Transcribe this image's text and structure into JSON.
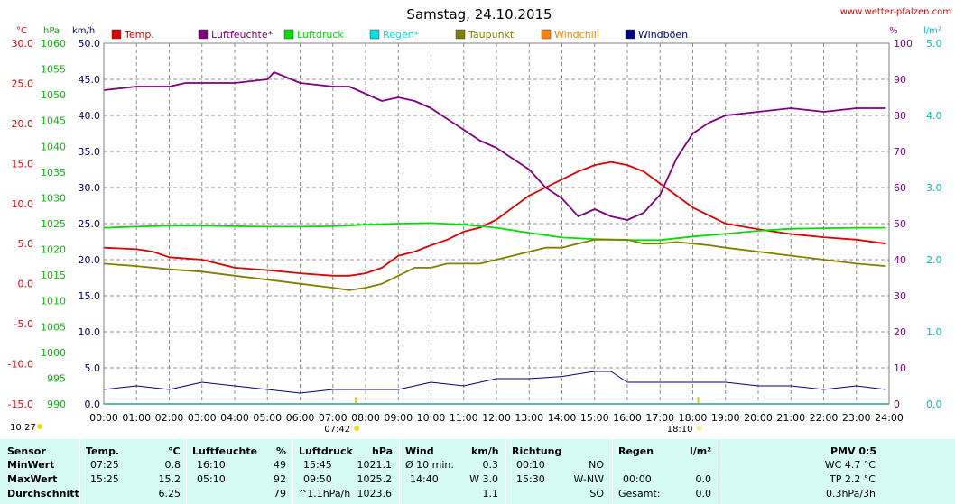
{
  "header": {
    "title": "Samstag, 24.10.2015",
    "website": "www.wetter-pfalzen.com"
  },
  "axes": {
    "temp_unit": "°C",
    "pressure_unit": "hPa",
    "wind_unit": "km/h",
    "humidity_unit": "%",
    "rain_unit": "l/m²"
  },
  "legend": [
    {
      "label": "Temp.",
      "color": "#e00000"
    },
    {
      "label": "Luftfeuchte*",
      "color": "#800080"
    },
    {
      "label": "Luftdruck",
      "color": "#00e000"
    },
    {
      "label": "Regen*",
      "color": "#00e0e0"
    },
    {
      "label": "Taupunkt",
      "color": "#808000"
    },
    {
      "label": "Windchill",
      "color": "#ff8000"
    },
    {
      "label": "Windböen",
      "color": "#000080"
    }
  ],
  "markers": {
    "left_time": "10:27",
    "sunrise": "07:42",
    "sunset": "18:10"
  },
  "chart_data": {
    "type": "line",
    "title": "Samstag, 24.10.2015",
    "x_ticks": [
      "00:00",
      "01:00",
      "02:00",
      "03:00",
      "04:00",
      "05:00",
      "06:00",
      "07:00",
      "08:00",
      "09:00",
      "10:00",
      "11:00",
      "12:00",
      "13:00",
      "14:00",
      "15:00",
      "16:00",
      "17:00",
      "18:00",
      "19:00",
      "20:00",
      "21:00",
      "22:00",
      "23:00",
      "24:00"
    ],
    "x_range_hours": [
      0,
      24
    ],
    "grid": true,
    "legend_position": "top",
    "axes": {
      "temperature": {
        "unit": "°C",
        "range": [
          -15,
          30
        ],
        "ticks": [
          "30.0",
          "25.0",
          "20.0",
          "15.0",
          "10.0",
          "5.0",
          "0.0",
          "-5.0",
          "-10.0",
          "-15.0"
        ],
        "color": "#e00000"
      },
      "pressure": {
        "unit": "hPa",
        "range": [
          990,
          1060
        ],
        "ticks": [
          "1060",
          "1055",
          "1050",
          "1045",
          "1040",
          "1035",
          "1030",
          "1025",
          "1020",
          "1015",
          "1010",
          "1005",
          "1000",
          "995",
          "990"
        ],
        "color": "#00c000"
      },
      "wind": {
        "unit": "km/h",
        "range": [
          0,
          50
        ],
        "ticks": [
          "50.0",
          "45.0",
          "40.0",
          "35.0",
          "30.0",
          "25.0",
          "20.0",
          "15.0",
          "10.0",
          "5.0",
          "0.0"
        ],
        "color": "#000080"
      },
      "humidity": {
        "unit": "%",
        "range": [
          0,
          100
        ],
        "ticks": [
          "100",
          "90",
          "80",
          "70",
          "60",
          "50",
          "40",
          "30",
          "20",
          "10",
          "0"
        ],
        "color": "#800080"
      },
      "rain": {
        "unit": "l/m²",
        "range": [
          0,
          5
        ],
        "ticks": [
          "5.0",
          "4.0",
          "3.0",
          "2.0",
          "1.0",
          "0.0"
        ],
        "color": "#00c0c0"
      }
    },
    "series": [
      {
        "name": "Temp.",
        "axis": "temperature",
        "color": "#e00000",
        "x": [
          0,
          1,
          1.5,
          2,
          3,
          4,
          5,
          6,
          7,
          7.5,
          8,
          8.5,
          9,
          9.5,
          10,
          10.5,
          11,
          11.5,
          12,
          12.5,
          13,
          13.5,
          14,
          14.5,
          15,
          15.5,
          16,
          16.5,
          17,
          17.5,
          18,
          18.5,
          19,
          20,
          21,
          22,
          23,
          23.9
        ],
        "y": [
          4.5,
          4.3,
          4.0,
          3.3,
          3.0,
          2.0,
          1.7,
          1.3,
          1.0,
          1.0,
          1.3,
          2.0,
          3.5,
          4.0,
          4.8,
          5.5,
          6.5,
          7.0,
          8.0,
          9.5,
          11.0,
          12.0,
          13.0,
          14.0,
          14.8,
          15.2,
          14.8,
          14.0,
          12.5,
          11.0,
          9.5,
          8.5,
          7.5,
          6.8,
          6.2,
          5.8,
          5.5,
          5.0
        ]
      },
      {
        "name": "Luftfeuchte*",
        "axis": "humidity",
        "color": "#800080",
        "x": [
          0,
          1,
          2,
          2.5,
          3,
          4,
          5,
          5.2,
          6,
          7,
          7.5,
          8,
          8.5,
          9,
          9.5,
          10,
          10.5,
          11,
          11.5,
          12,
          12.5,
          13,
          13.5,
          14,
          14.5,
          15,
          15.5,
          16,
          16.5,
          17,
          17.5,
          18,
          18.5,
          19,
          20,
          21,
          22,
          23,
          23.9
        ],
        "y": [
          87,
          88,
          88,
          89,
          89,
          89,
          90,
          92,
          89,
          88,
          88,
          86,
          84,
          85,
          84,
          82,
          79,
          76,
          73,
          71,
          68,
          65,
          60,
          57,
          52,
          54,
          52,
          51,
          53,
          58,
          68,
          75,
          78,
          80,
          81,
          82,
          81,
          82,
          82
        ]
      },
      {
        "name": "Luftdruck",
        "axis": "pressure",
        "color": "#00e000",
        "x": [
          0,
          1,
          2,
          3,
          4,
          5,
          6,
          7,
          8,
          9,
          10,
          11,
          12,
          13,
          14,
          15,
          16,
          17,
          18,
          19,
          20,
          21,
          22,
          23,
          23.9
        ],
        "y": [
          1024.2,
          1024.4,
          1024.6,
          1024.6,
          1024.5,
          1024.4,
          1024.4,
          1024.5,
          1024.8,
          1025.0,
          1025.1,
          1024.8,
          1024.2,
          1023.2,
          1022.3,
          1022.0,
          1021.8,
          1021.8,
          1022.5,
          1023.0,
          1023.6,
          1024.0,
          1024.1,
          1024.2,
          1024.2
        ]
      },
      {
        "name": "Regen*",
        "axis": "rain",
        "color": "#00e0e0",
        "x": [
          0,
          24
        ],
        "y": [
          0,
          0
        ]
      },
      {
        "name": "Taupunkt",
        "axis": "temperature",
        "color": "#808000",
        "x": [
          0,
          1,
          2,
          3,
          4,
          5,
          6,
          7,
          7.5,
          8,
          8.5,
          9,
          9.5,
          10,
          10.5,
          11,
          11.5,
          12,
          12.5,
          13,
          13.5,
          14,
          14.5,
          15,
          15.5,
          16,
          16.5,
          17,
          17.5,
          18,
          18.5,
          19,
          20,
          21,
          22,
          23,
          23.9
        ],
        "y": [
          2.5,
          2.2,
          1.8,
          1.5,
          1.0,
          0.5,
          0,
          -0.5,
          -0.8,
          -0.5,
          0,
          1.0,
          2.0,
          2.0,
          2.5,
          2.5,
          2.5,
          3.0,
          3.5,
          4.0,
          4.5,
          4.5,
          5.0,
          5.5,
          5.5,
          5.5,
          5.0,
          5.0,
          5.2,
          5.0,
          4.8,
          4.5,
          4.0,
          3.5,
          3.0,
          2.5,
          2.2
        ]
      },
      {
        "name": "Windböen",
        "axis": "wind",
        "color": "#000080",
        "x": [
          0,
          1,
          2,
          3,
          4,
          5,
          6,
          7,
          8,
          9,
          10,
          11,
          12,
          13,
          14,
          15,
          15.5,
          16,
          17,
          18,
          19,
          20,
          21,
          22,
          23,
          23.9
        ],
        "y": [
          2.0,
          2.5,
          2.0,
          3.0,
          2.5,
          2.0,
          1.5,
          2.0,
          2.0,
          2.0,
          3.0,
          2.5,
          3.5,
          3.5,
          3.8,
          4.5,
          4.5,
          3.0,
          3.0,
          3.0,
          3.0,
          2.5,
          2.5,
          2.0,
          2.5,
          2.0
        ]
      }
    ]
  },
  "stats_table": {
    "headers": {
      "sensor": "Sensor",
      "temp": "Temp.",
      "temp_unit": "°C",
      "humidity": "Luftfeuchte",
      "humidity_unit": "%",
      "pressure": "Luftdruck",
      "pressure_unit": "hPa",
      "wind": "Wind",
      "wind_unit": "km/h",
      "direction": "Richtung",
      "rain": "Regen",
      "rain_unit": "l/m²",
      "pmv": "PMV 0:5"
    },
    "rows": [
      {
        "label": "MinWert",
        "temp_time": "07:25",
        "temp_val": "0.8",
        "hum_time": "16:10",
        "hum_val": "49",
        "press_time": "15:45",
        "press_val": "1021.1",
        "wind_time": "Ø 10 min.",
        "wind_val": "0.3",
        "dir_time": "00:10",
        "dir_val": "NO",
        "rain_time": "",
        "rain_val": "",
        "pmv": "WC 4.7 °C"
      },
      {
        "label": "MaxWert",
        "temp_time": "15:25",
        "temp_val": "15.2",
        "hum_time": "05:10",
        "hum_val": "92",
        "press_time": "09:50",
        "press_val": "1025.2",
        "wind_time": "14:40",
        "wind_val": "W 3.0",
        "dir_time": "15:30",
        "dir_val": "W-NW",
        "rain_time": "00:00",
        "rain_val": "0.0",
        "pmv": "TP 2.2 °C"
      },
      {
        "label": "Durchschnitt",
        "temp_time": "",
        "temp_val": "6.25",
        "hum_time": "",
        "hum_val": "79",
        "press_time": "^1.1hPa/h",
        "press_val": "1023.6",
        "wind_time": "",
        "wind_val": "1.1",
        "dir_time": "",
        "dir_val": "SO",
        "rain_time": "Gesamt:",
        "rain_val": "0.0",
        "pmv": "0.3hPa/3h"
      }
    ]
  }
}
